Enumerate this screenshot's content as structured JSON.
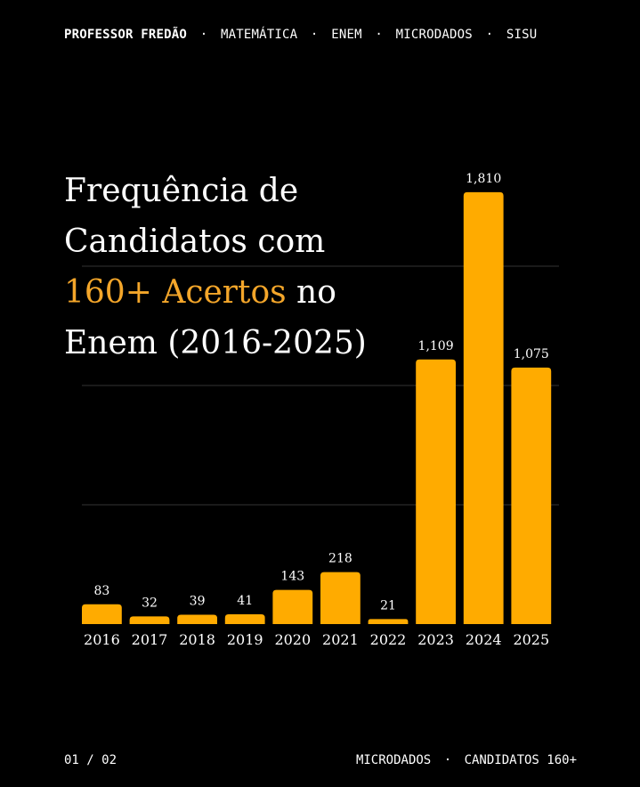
{
  "header": {
    "brand": "PROFESSOR FREDÃO",
    "separator": "·",
    "tags": [
      "MATEMÁTICA",
      "ENEM",
      "MICRODADOS",
      "SISU"
    ]
  },
  "title": {
    "line1": "Frequência de",
    "line2": "Candidatos com",
    "highlight": "160+ Acertos",
    "line3_rest": " no",
    "line4": "Enem (2016-2025)"
  },
  "colors": {
    "background": "#000000",
    "bar": "#ffab00",
    "highlight": "#f4a62a",
    "gridline": "#333333",
    "text": "#ffffff"
  },
  "chart_data": {
    "type": "bar",
    "categories": [
      "2016",
      "2017",
      "2018",
      "2019",
      "2020",
      "2021",
      "2022",
      "2023",
      "2024",
      "2025"
    ],
    "values": [
      83,
      32,
      39,
      41,
      143,
      218,
      21,
      1109,
      1810,
      1075
    ],
    "value_labels": [
      "83",
      "32",
      "39",
      "41",
      "143",
      "218",
      "21",
      "1,109",
      "1,810",
      "1,075"
    ],
    "ylim": [
      0,
      2000
    ],
    "grid": true,
    "gridlines": [
      500,
      1000,
      1500
    ]
  },
  "footer": {
    "page": "01 / 02",
    "label_left": "MICRODADOS",
    "separator": "·",
    "label_right": "CANDIDATOS 160+"
  }
}
